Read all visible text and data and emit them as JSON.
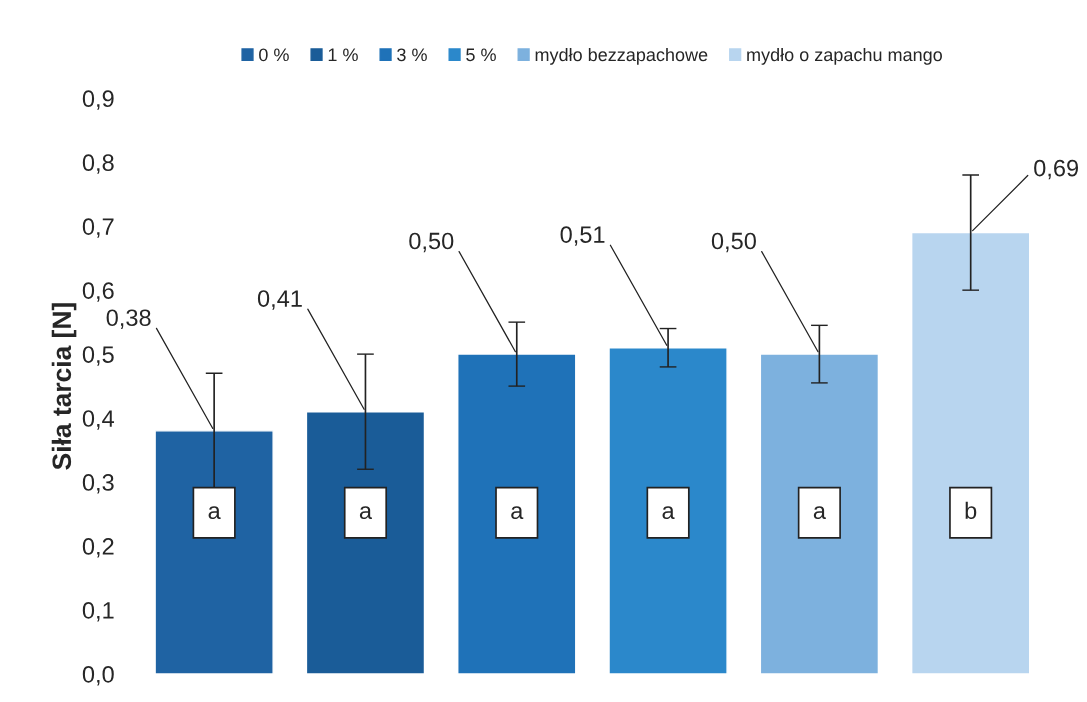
{
  "chart_data": {
    "type": "bar",
    "ylabel": "Siła tarcia [N]",
    "categories": [
      null
    ],
    "series": [
      {
        "name": "0 %",
        "color": "#1f63a3",
        "values": [
          0.38
        ],
        "errors": [
          0.09
        ],
        "value_labels": [
          "0,38"
        ]
      },
      {
        "name": "1 %",
        "color": "#1a5c98",
        "values": [
          0.41
        ],
        "errors": [
          0.09
        ],
        "value_labels": [
          "0,41"
        ]
      },
      {
        "name": "3 %",
        "color": "#1f72b8",
        "values": [
          0.5
        ],
        "errors": [
          0.05
        ],
        "value_labels": [
          "0,50"
        ]
      },
      {
        "name": "5 %",
        "color": "#2b88cb",
        "values": [
          0.51
        ],
        "errors": [
          0.03
        ],
        "value_labels": [
          "0,51"
        ]
      },
      {
        "name": "mydło bezzapachowe",
        "color": "#7db1de",
        "values": [
          0.5
        ],
        "errors": [
          0.045
        ],
        "value_labels": [
          "0,50"
        ]
      },
      {
        "name": "mydło o zapachu mango",
        "color": "#b8d5ef",
        "values": [
          0.69
        ],
        "errors": [
          0.09
        ],
        "value_labels": [
          "0,69"
        ]
      }
    ],
    "annotations": [
      "a",
      "a",
      "a",
      "a",
      "a",
      "b"
    ],
    "ylim": [
      0,
      0.9
    ],
    "yticks": [
      {
        "value": 0,
        "label": "0,0"
      },
      {
        "value": 0.1,
        "label": "0,1"
      },
      {
        "value": 0.2,
        "label": "0,2"
      },
      {
        "value": 0.3,
        "label": "0,3"
      },
      {
        "value": 0.4,
        "label": "0,4"
      },
      {
        "value": 0.5,
        "label": "0,5"
      },
      {
        "value": 0.6,
        "label": "0,6"
      },
      {
        "value": 0.7,
        "label": "0,7"
      },
      {
        "value": 0.8,
        "label": "0,8"
      },
      {
        "value": 0.9,
        "label": "0,9"
      }
    ],
    "legend": "top",
    "grid": false
  }
}
